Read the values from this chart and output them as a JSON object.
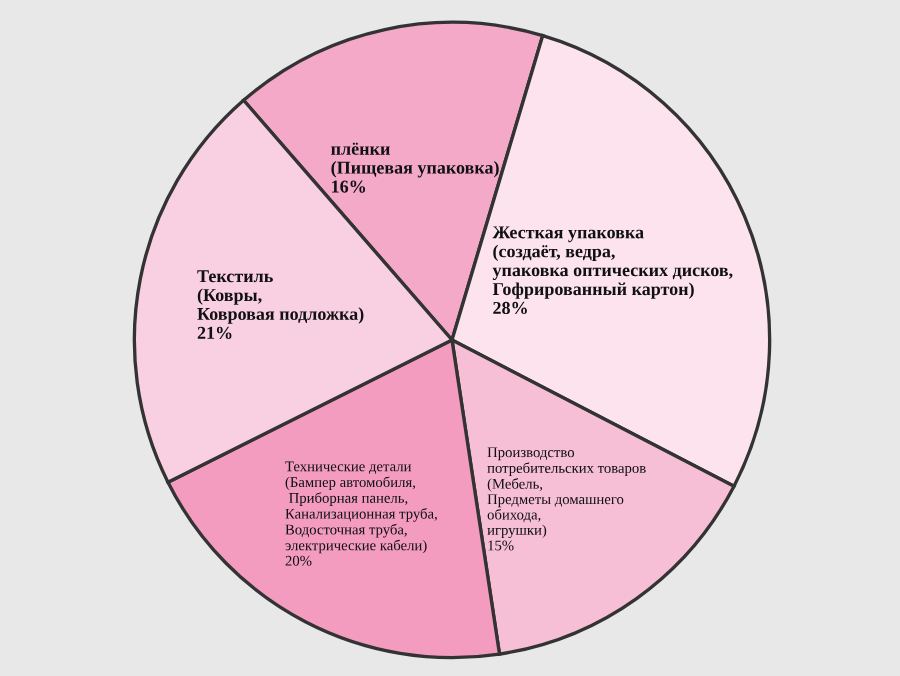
{
  "chart_data": {
    "type": "pie",
    "categories": [
      "плёнки\n(Пищевая упаковка)",
      "Жесткая упаковка\n(создаёт, ведра,\nупаковка оптических дисков,\nГофрированный картон)",
      "Производство\nпотребительских товаров\n(Мебель,\nПредметы домашнего\nобихода,\nигрушки)",
      "Технические детали\n(Бампер автомобиля,\n Приборная панель,\nКанализационная труба,\nВодосточная труба,\nэлектрические кабели)",
      "Текстиль\n(Ковры,\nКовровая подложка)"
    ],
    "values": [
      16,
      28,
      15,
      20,
      21
    ],
    "colors": [
      "#f4a9c8",
      "#fce3ee",
      "#f7bfd6",
      "#f39cc0",
      "#f9d0e2"
    ],
    "value_labels": [
      "16%",
      "28%",
      "15%",
      "20%",
      "21%"
    ]
  }
}
